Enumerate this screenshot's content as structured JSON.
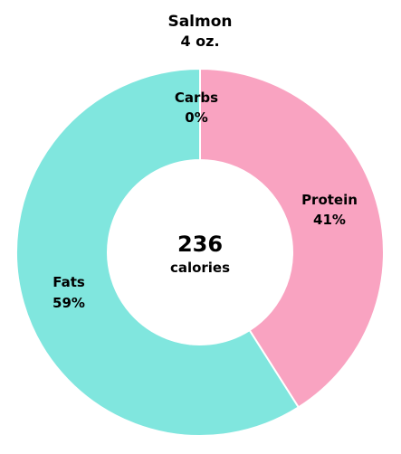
{
  "chart_data": {
    "type": "pie",
    "title": "Salmon",
    "subtitle": "4 oz.",
    "center_value": "236",
    "center_label": "calories",
    "slices": [
      {
        "name": "Protein",
        "value": 41,
        "value_label": "41%",
        "color": "#f9a3c1"
      },
      {
        "name": "Fats",
        "value": 59,
        "value_label": "59%",
        "color": "#80e6de"
      },
      {
        "name": "Carbs",
        "value": 0,
        "value_label": "0%",
        "color": "#f5c77e"
      }
    ]
  }
}
